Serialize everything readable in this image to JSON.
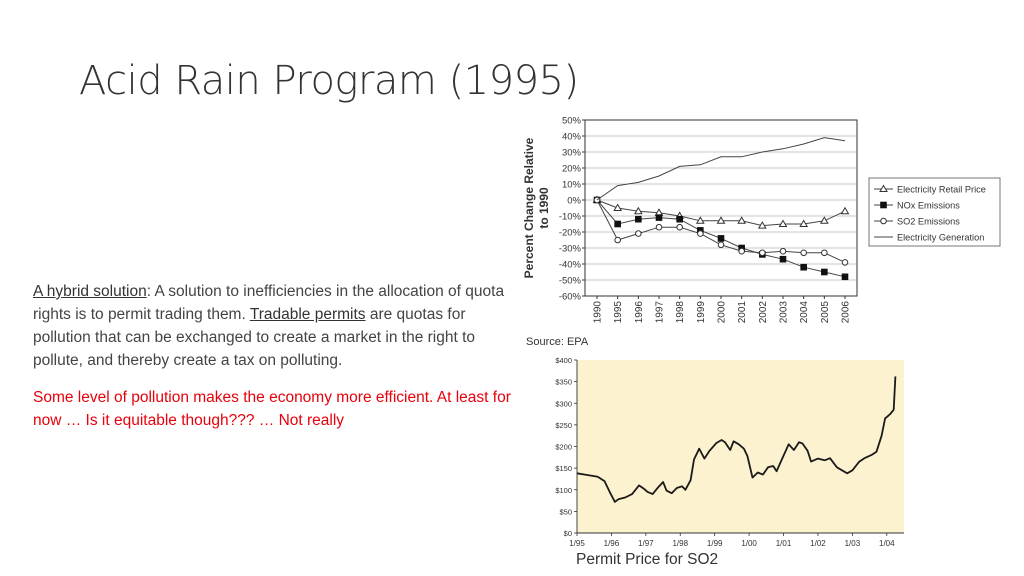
{
  "slide": {
    "title": "Acid Rain Program (1995)",
    "p1_term1": "A hybrid solution",
    "p1_text1": ": A solution to inefficiencies in the allocation of quota rights is to permit trading them. ",
    "p1_term2": "Tradable permits",
    "p1_text2": " are quotas for pollution that can be exchanged to create a market in the right to pollute, and thereby create a tax on polluting.",
    "p2": "Some level of pollution makes the economy more efficient. At least for now … Is it equitable though??? … Not really",
    "caption": "Permit Price for SO2",
    "source": "Source: EPA"
  },
  "chart_data": [
    {
      "type": "line",
      "title": "",
      "ylabel": "Percent Change Relative to 1990",
      "xlabel": "",
      "x": [
        "1990",
        "1995",
        "1996",
        "1997",
        "1998",
        "1999",
        "2000",
        "2001",
        "2002",
        "2003",
        "2004",
        "2005",
        "2006"
      ],
      "yticks": [
        "50%",
        "40%",
        "30%",
        "20%",
        "10%",
        "0%",
        "-10%",
        "-20%",
        "-30%",
        "-40%",
        "-50%",
        "-60%"
      ],
      "ylim": [
        -60,
        50
      ],
      "legend_position": "right",
      "grid": "horizontal",
      "series": [
        {
          "name": "Electricity Retail Price",
          "marker": "triangle",
          "values": [
            0,
            -5,
            -7,
            -8,
            -10,
            -13,
            -13,
            -13,
            -16,
            -15,
            -15,
            -13,
            -7
          ]
        },
        {
          "name": "NOx Emissions",
          "marker": "square",
          "values": [
            0,
            -15,
            -12,
            -11,
            -12,
            -19,
            -24,
            -30,
            -34,
            -37,
            -42,
            -45,
            -48
          ]
        },
        {
          "name": "SO2 Emissions",
          "marker": "circle",
          "values": [
            0,
            -25,
            -21,
            -17,
            -17,
            -21,
            -28,
            -32,
            -33,
            -32,
            -33,
            -33,
            -39
          ]
        },
        {
          "name": "Electricity Generation",
          "marker": "none",
          "values": [
            0,
            9,
            11,
            15,
            21,
            22,
            27,
            27,
            30,
            32,
            35,
            39,
            37
          ]
        }
      ]
    },
    {
      "type": "line",
      "title": "",
      "xlabel": "",
      "ylabel": "",
      "x_ticks": [
        "1/95",
        "1/96",
        "1/97",
        "1/98",
        "1/99",
        "1/00",
        "1/01",
        "1/02",
        "1/03",
        "1/04"
      ],
      "yticks": [
        "$400",
        "$350",
        "$300",
        "$250",
        "$200",
        "$150",
        "$100",
        "$50",
        "$0"
      ],
      "ylim": [
        0,
        400
      ],
      "xlim": [
        1995,
        2004.5
      ],
      "grid": false,
      "background": "#fdf2cf",
      "points": [
        [
          1995.0,
          138
        ],
        [
          1995.3,
          134
        ],
        [
          1995.6,
          130
        ],
        [
          1995.8,
          120
        ],
        [
          1995.95,
          95
        ],
        [
          1996.1,
          72
        ],
        [
          1996.2,
          78
        ],
        [
          1996.4,
          82
        ],
        [
          1996.6,
          90
        ],
        [
          1996.8,
          110
        ],
        [
          1996.95,
          102
        ],
        [
          1997.05,
          95
        ],
        [
          1997.2,
          90
        ],
        [
          1997.35,
          105
        ],
        [
          1997.5,
          118
        ],
        [
          1997.6,
          98
        ],
        [
          1997.75,
          92
        ],
        [
          1997.9,
          104
        ],
        [
          1998.05,
          108
        ],
        [
          1998.15,
          100
        ],
        [
          1998.3,
          122
        ],
        [
          1998.4,
          170
        ],
        [
          1998.55,
          195
        ],
        [
          1998.7,
          172
        ],
        [
          1998.85,
          190
        ],
        [
          1999.05,
          208
        ],
        [
          1999.2,
          215
        ],
        [
          1999.3,
          210
        ],
        [
          1999.45,
          192
        ],
        [
          1999.55,
          212
        ],
        [
          1999.7,
          205
        ],
        [
          1999.85,
          195
        ],
        [
          1999.95,
          178
        ],
        [
          2000.1,
          128
        ],
        [
          2000.25,
          140
        ],
        [
          2000.4,
          135
        ],
        [
          2000.55,
          152
        ],
        [
          2000.7,
          155
        ],
        [
          2000.8,
          143
        ],
        [
          2000.95,
          170
        ],
        [
          2001.15,
          205
        ],
        [
          2001.3,
          192
        ],
        [
          2001.45,
          210
        ],
        [
          2001.55,
          207
        ],
        [
          2001.7,
          190
        ],
        [
          2001.8,
          165
        ],
        [
          2002.0,
          172
        ],
        [
          2002.2,
          168
        ],
        [
          2002.35,
          173
        ],
        [
          2002.55,
          152
        ],
        [
          2002.7,
          145
        ],
        [
          2002.85,
          138
        ],
        [
          2003.0,
          145
        ],
        [
          2003.2,
          165
        ],
        [
          2003.35,
          173
        ],
        [
          2003.55,
          180
        ],
        [
          2003.7,
          188
        ],
        [
          2003.85,
          225
        ],
        [
          2003.95,
          265
        ],
        [
          2004.1,
          275
        ],
        [
          2004.2,
          285
        ],
        [
          2004.25,
          362
        ]
      ]
    }
  ]
}
